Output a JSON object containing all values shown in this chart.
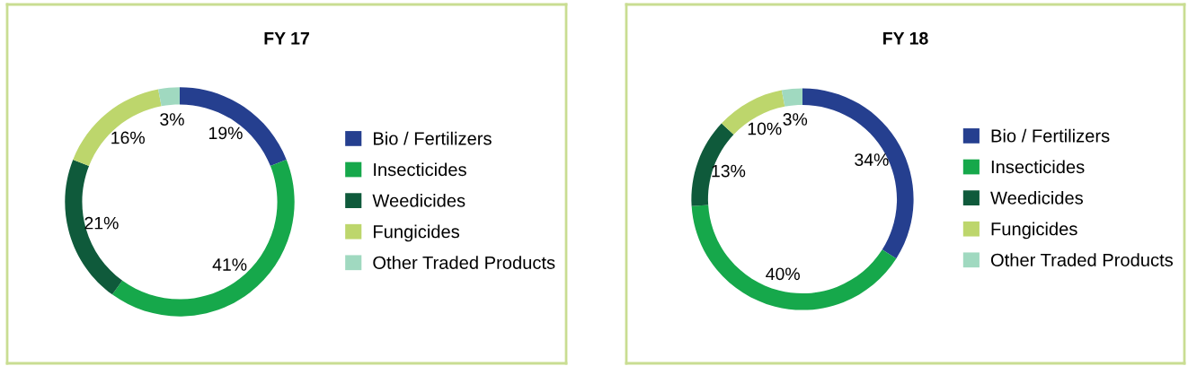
{
  "chart_data": [
    {
      "type": "donut",
      "title": "FY 17",
      "categories": [
        "Bio / Fertilizers",
        "Insecticides",
        "Weedicides",
        "Fungicides",
        "Other Traded Products"
      ],
      "values": [
        19,
        41,
        21,
        16,
        3
      ],
      "value_labels": [
        "19%",
        "41%",
        "21%",
        "16%",
        "3%"
      ],
      "colors": [
        "#253f8f",
        "#16a84b",
        "#0f5a3b",
        "#bdd66c",
        "#a0d9c0"
      ],
      "legend": "right"
    },
    {
      "type": "donut",
      "title": "FY 18",
      "categories": [
        "Bio / Fertilizers",
        "Insecticides",
        "Weedicides",
        "Fungicides",
        "Other Traded Products"
      ],
      "values": [
        34,
        40,
        13,
        10,
        3
      ],
      "value_labels": [
        "34%",
        "40%",
        "13%",
        "10%",
        "3%"
      ],
      "colors": [
        "#253f8f",
        "#16a84b",
        "#0f5a3b",
        "#bdd66c",
        "#a0d9c0"
      ],
      "legend": "right"
    }
  ]
}
